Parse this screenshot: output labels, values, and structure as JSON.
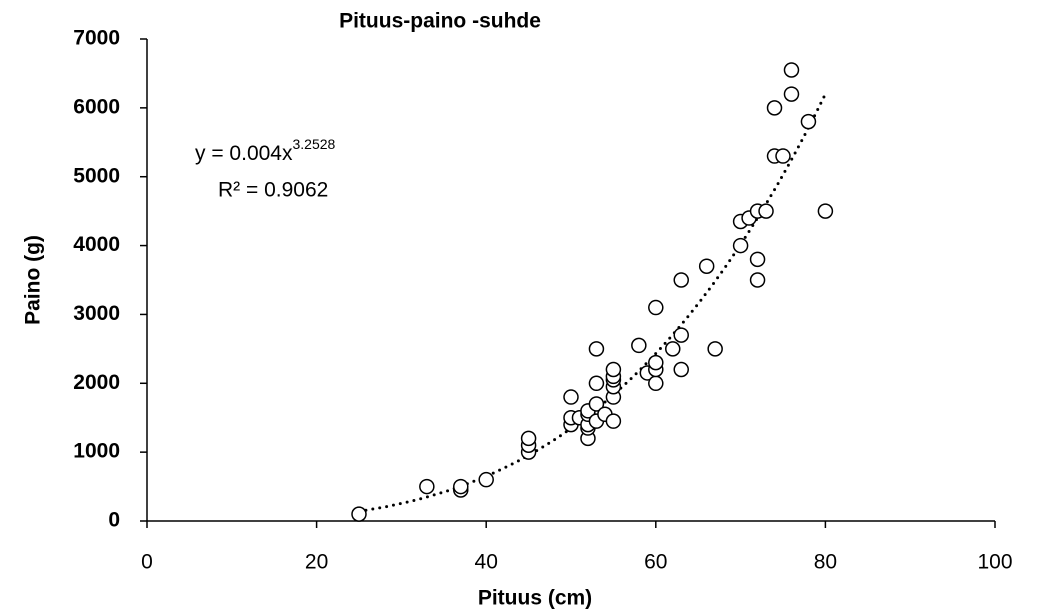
{
  "chart_data": {
    "type": "scatter",
    "title": "Pituus-paino -suhde",
    "xlabel": "Pituus (cm)",
    "ylabel": "Paino (g)",
    "x": [
      25,
      33,
      37,
      37,
      40,
      45,
      45,
      45,
      50,
      50,
      50,
      51,
      52,
      52,
      52,
      52,
      52,
      53,
      53,
      53,
      53,
      54,
      55,
      55,
      55,
      55,
      55,
      55,
      58,
      59,
      60,
      60,
      60,
      60,
      62,
      63,
      63,
      63,
      66,
      67,
      70,
      70,
      71,
      72,
      72,
      72,
      73,
      74,
      74,
      75,
      76,
      76,
      78,
      80
    ],
    "series": [
      {
        "name": "Paino",
        "color": "#000000",
        "values": [
          100,
          500,
          450,
          500,
          600,
          1000,
          1100,
          1200,
          1400,
          1500,
          1800,
          1500,
          1200,
          1350,
          1400,
          1550,
          1600,
          1450,
          1700,
          2000,
          2500,
          1550,
          1450,
          1800,
          1950,
          2050,
          2100,
          2200,
          2550,
          2150,
          2000,
          2200,
          2300,
          3100,
          2500,
          2200,
          2700,
          3500,
          3700,
          2500,
          4000,
          4350,
          4400,
          3500,
          3800,
          4500,
          4500,
          5300,
          6000,
          5300,
          6200,
          6550,
          5800,
          4500
        ]
      }
    ],
    "xlim": [
      0,
      100
    ],
    "xticks": [
      0,
      20,
      40,
      60,
      80,
      100
    ],
    "ylim": [
      0,
      7000
    ],
    "yticks": [
      0,
      1000,
      2000,
      3000,
      4000,
      5000,
      6000,
      7000
    ],
    "grid": false,
    "trendline": {
      "type": "power",
      "equation": "y = 0.004x",
      "exponent": "3.2528",
      "r2": "R² = 0.9062"
    }
  }
}
